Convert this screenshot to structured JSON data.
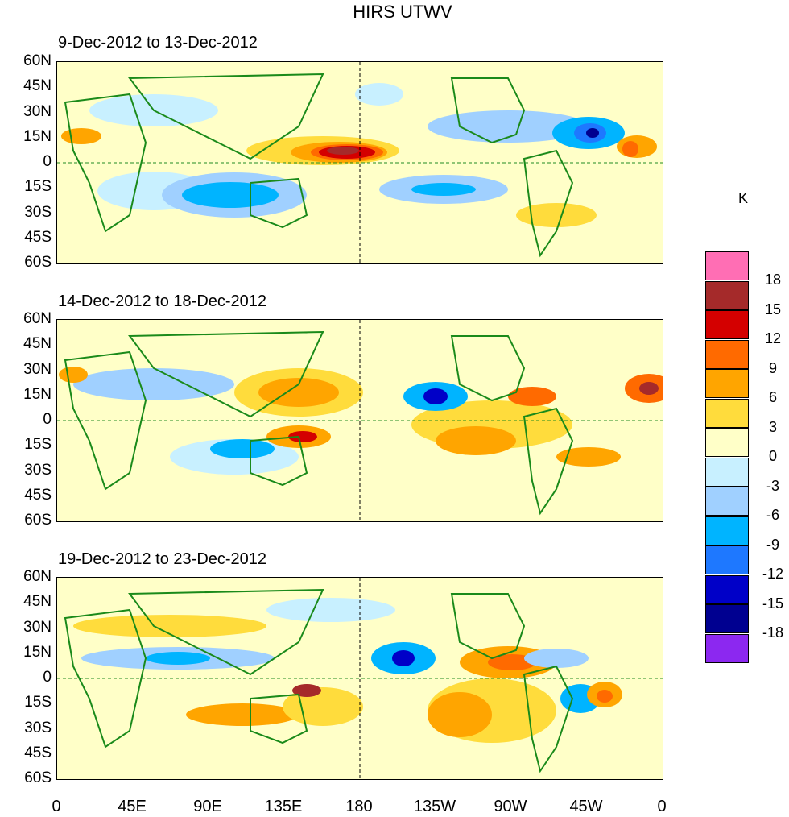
{
  "title": "HIRS UTWV",
  "panels": [
    {
      "label": "9-Dec-2012 to 13-Dec-2012"
    },
    {
      "label": "14-Dec-2012 to 18-Dec-2012"
    },
    {
      "label": "19-Dec-2012 to 23-Dec-2012"
    }
  ],
  "lat_ticks": [
    "60N",
    "45N",
    "30N",
    "15N",
    "0",
    "15S",
    "30S",
    "45S",
    "60S"
  ],
  "lon_ticks": [
    "0",
    "45E",
    "90E",
    "135E",
    "180",
    "135W",
    "90W",
    "45W",
    "0"
  ],
  "colorbar": {
    "unit": "K",
    "labels": [
      "18",
      "15",
      "12",
      "9",
      "6",
      "3",
      "0",
      "-3",
      "-6",
      "-9",
      "-12",
      "-15",
      "-18"
    ],
    "colors": [
      "#ff6eb4",
      "#a52a2a",
      "#d40000",
      "#ff6a00",
      "#ffa500",
      "#ffdc3c",
      "#ffffc8",
      "#c8f0ff",
      "#a0d0ff",
      "#00b4ff",
      "#1e78ff",
      "#0000c8",
      "#000090",
      "#8c28f0"
    ]
  },
  "map_colors": {
    "coast": "#1a8a1a",
    "grid": "#228b22"
  }
}
